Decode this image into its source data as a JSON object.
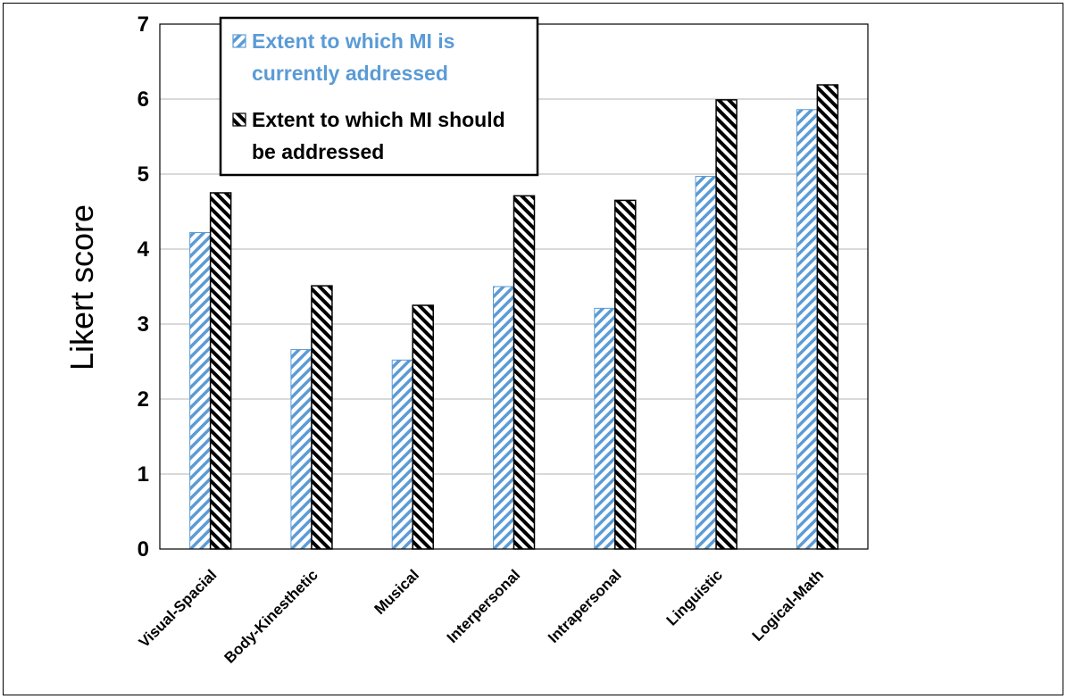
{
  "chart_data": {
    "type": "bar",
    "title": "",
    "xlabel": "",
    "ylabel": "Likert score",
    "ylim": [
      0,
      7
    ],
    "yticks": [
      "0",
      "1",
      "2",
      "3",
      "4",
      "5",
      "6",
      "7"
    ],
    "grid": true,
    "legend_position": "top-left",
    "categories": [
      "Visual-Spacial",
      "Body-Kinesthetic",
      "Musical",
      "Interpersonal",
      "Intrapersonal",
      "Linguistic",
      "Logical-Math"
    ],
    "series": [
      {
        "name": "Extent to which MI is currently addressed",
        "legend_lines": [
          "Extent to which MI is",
          "currently addressed"
        ],
        "color": "#5b9bd5",
        "values": [
          4.22,
          2.66,
          2.52,
          3.5,
          3.21,
          4.97,
          5.86
        ]
      },
      {
        "name": "Extent to which MI should be addressed",
        "legend_lines": [
          "Extent to which MI should",
          "be addressed"
        ],
        "color": "#000000",
        "values": [
          4.75,
          3.51,
          3.25,
          4.71,
          4.65,
          5.99,
          6.19
        ]
      }
    ]
  }
}
